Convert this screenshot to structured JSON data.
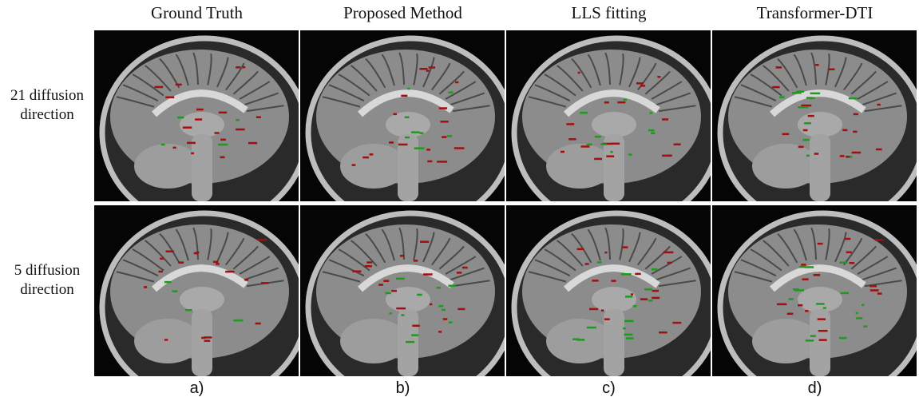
{
  "columns": [
    {
      "title": "Ground Truth",
      "label": "a)"
    },
    {
      "title": "Proposed Method",
      "label": "b)"
    },
    {
      "title": "LLS fitting",
      "label": "c)"
    },
    {
      "title": "Transformer-DTI",
      "label": "d)"
    }
  ],
  "rows": [
    {
      "label": "21 diffusion direction"
    },
    {
      "label": "5 diffusion direction"
    }
  ]
}
